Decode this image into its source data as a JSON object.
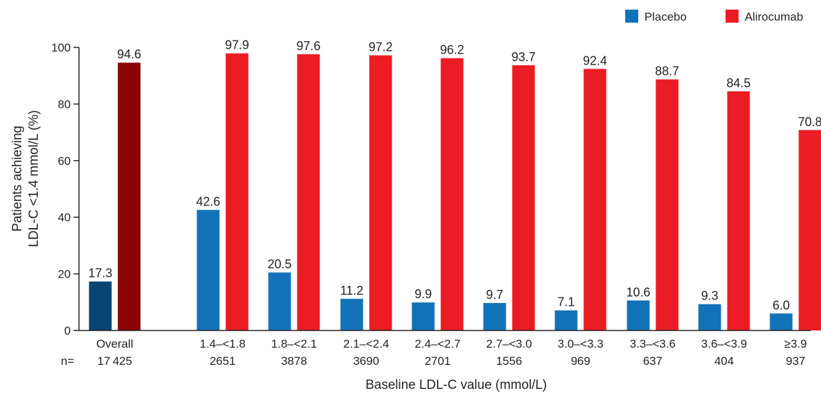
{
  "chart_data": {
    "type": "bar",
    "xlabel": "Baseline LDL-C value (mmol/L)",
    "ylabel_line1": "Patients achieving",
    "ylabel_line2": "LDL-C <1.4 mmol/L (%)",
    "ylim": [
      0,
      100
    ],
    "yticks": [
      "0",
      "20",
      "40",
      "60",
      "80",
      "100"
    ],
    "n_prefix": "n=",
    "legend_position": "top-right",
    "categories": [
      "Overall",
      "1.4–<1.8",
      "1.8–<2.1",
      "2.1–<2.4",
      "2.4–<2.7",
      "2.7–<3.0",
      "3.0–<3.3",
      "3.3–<3.6",
      "3.6–<3.9",
      "≥3.9"
    ],
    "n_values": [
      "17 425",
      "2651",
      "3878",
      "3690",
      "2701",
      "1556",
      "969",
      "637",
      "404",
      "937"
    ],
    "series": [
      {
        "name": "Placebo",
        "color": "#1272b8",
        "overall_color": "#0a4472",
        "values": [
          17.3,
          42.6,
          20.5,
          11.2,
          9.9,
          9.7,
          7.1,
          10.6,
          9.3,
          6.0
        ],
        "labels": [
          "17.3",
          "42.6",
          "20.5",
          "11.2",
          "9.9",
          "9.7",
          "7.1",
          "10.6",
          "9.3",
          "6.0"
        ]
      },
      {
        "name": "Alirocumab",
        "color": "#ec1c24",
        "overall_color": "#8b0304",
        "values": [
          94.6,
          97.9,
          97.6,
          97.2,
          96.2,
          93.7,
          92.4,
          88.7,
          84.5,
          70.8
        ],
        "labels": [
          "94.6",
          "97.9",
          "97.6",
          "97.2",
          "96.2",
          "93.7",
          "92.4",
          "88.7",
          "84.5",
          "70.8"
        ]
      }
    ]
  }
}
